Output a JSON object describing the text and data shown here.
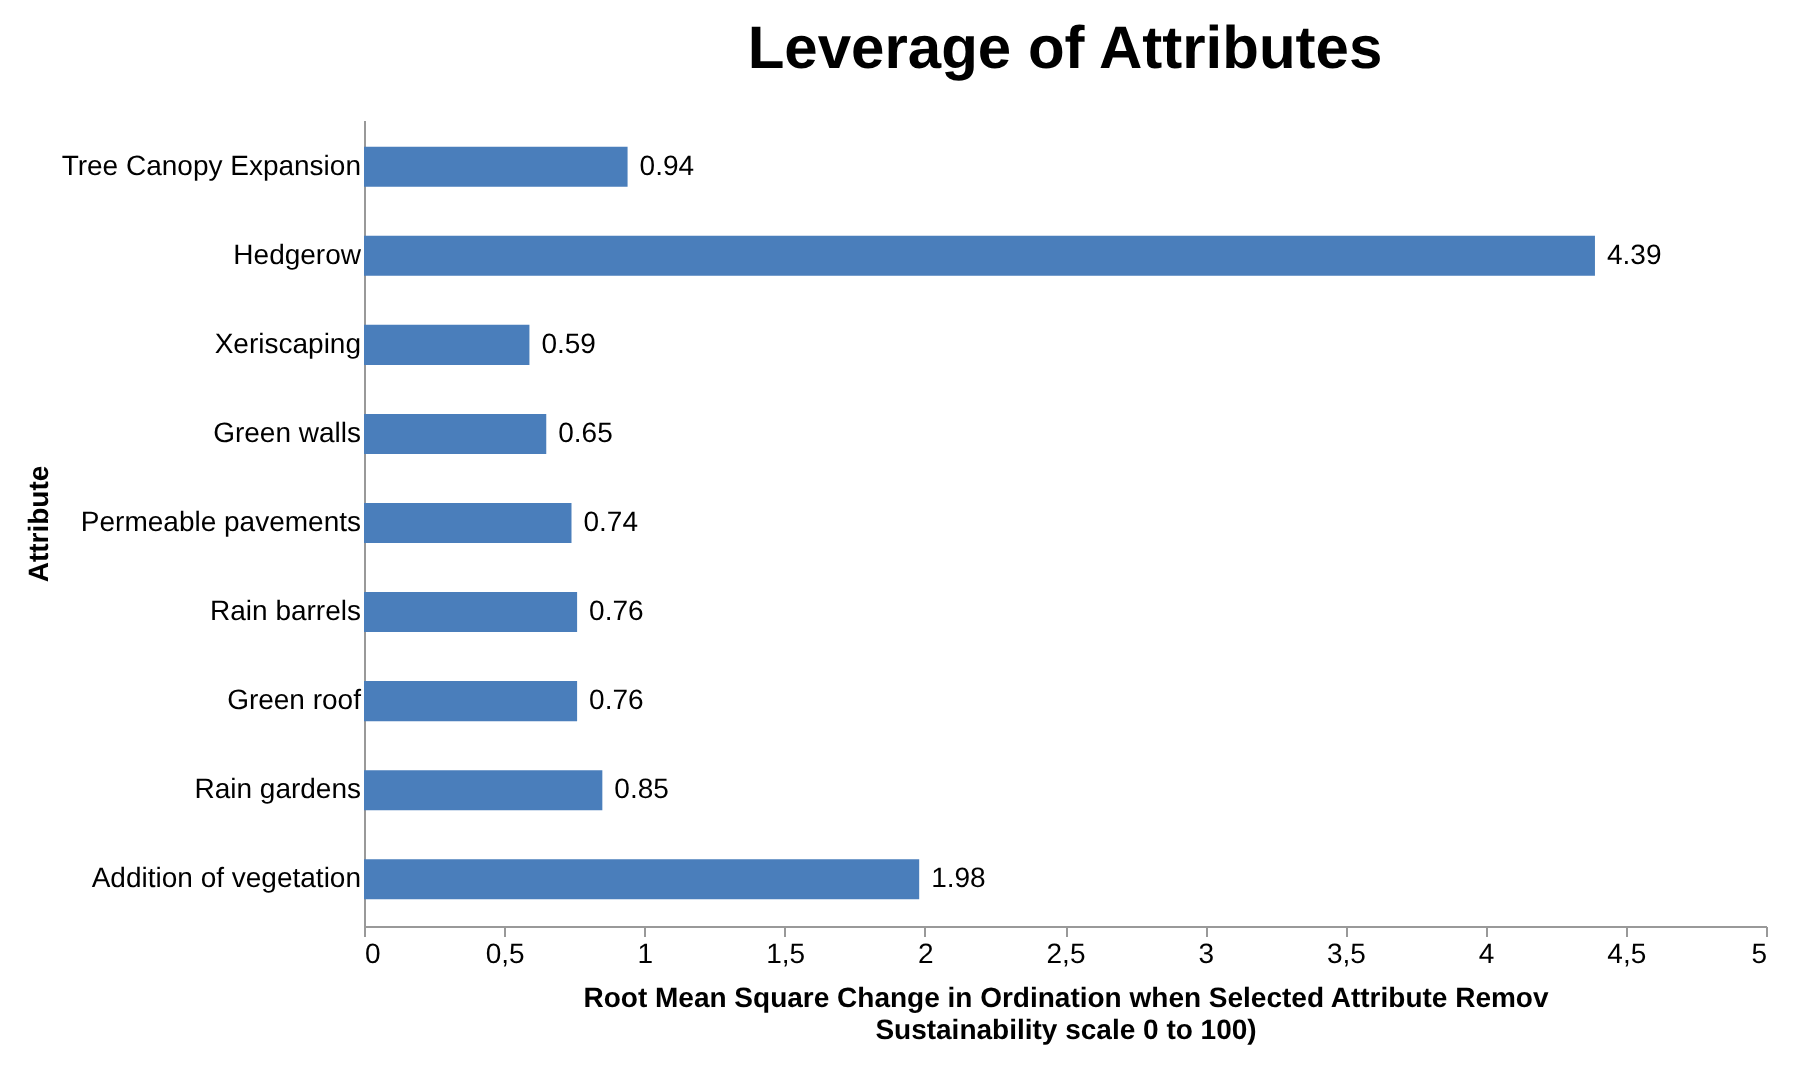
{
  "chart_data": {
    "type": "bar",
    "orientation": "horizontal",
    "title": "Leverage of Attributes",
    "xlabel": "Root Mean Square Change in Ordination when Selected Attribute Remov\nSustainability scale 0 to 100)",
    "ylabel": "Attribute",
    "categories": [
      "Tree Canopy Expansion",
      "Hedgerow",
      "Xeriscaping",
      "Green walls",
      "Permeable pavements",
      "Rain barrels",
      "Green roof",
      "Rain gardens",
      "Addition of vegetation"
    ],
    "values": [
      0.94,
      4.39,
      0.59,
      0.65,
      0.74,
      0.76,
      0.76,
      0.85,
      1.98
    ],
    "color": "#4a7ebb",
    "data_labels": true,
    "xlim": [
      0,
      5
    ],
    "xticks": [
      0,
      {
        "value": 0.5,
        "label": "0,5"
      },
      1,
      {
        "value": 1.5,
        "label": "1,5"
      },
      2,
      {
        "value": 2.5,
        "label": "2,5"
      },
      3,
      {
        "value": 3.5,
        "label": "3,5"
      },
      4,
      {
        "value": 4.5,
        "label": "4,5"
      },
      5
    ],
    "grid": false
  }
}
